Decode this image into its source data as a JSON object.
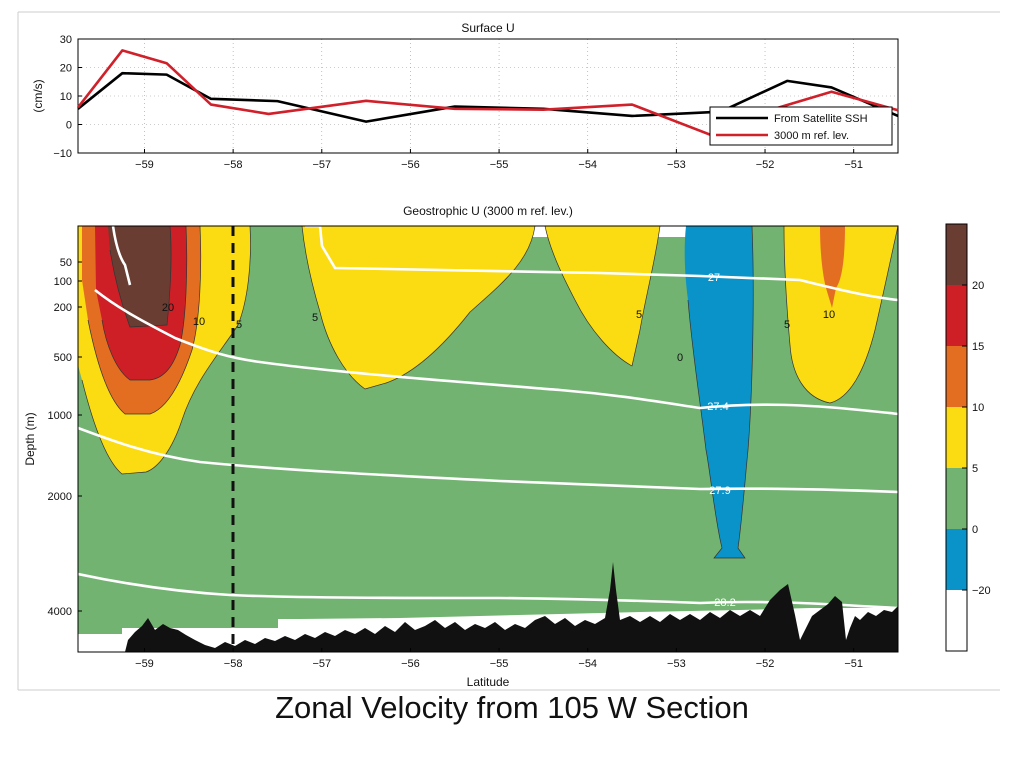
{
  "caption": "Zonal Velocity from 105 W Section",
  "colors": {
    "black_series": "#000000",
    "red_series": "#d0202a",
    "band_lt_neg20": "#ffffff",
    "band_neg20_0": "#0a93c8",
    "band_0_5": "#72b372",
    "band_5_10": "#fbdc12",
    "band_10_15": "#e36e22",
    "band_15_20": "#cd1f25",
    "band_gt_20": "#6a3d33",
    "isopycnal": "#ffffff",
    "bathymetry": "#111111"
  },
  "chart_data": [
    {
      "type": "line",
      "title": "Surface U",
      "xlabel": "",
      "ylabel": "(cm/s)",
      "xlim": [
        -59.75,
        -50.5
      ],
      "ylim": [
        -10,
        30
      ],
      "x_ticks": [
        -59,
        -58,
        -57,
        -56,
        -55,
        -54,
        -53,
        -52,
        -51
      ],
      "y_ticks": [
        -10,
        0,
        10,
        20,
        30
      ],
      "grid": true,
      "legend_position": "lower-right",
      "series": [
        {
          "name": "From Satellite SSH",
          "color": "#000000",
          "x": [
            -59.75,
            -59.25,
            -58.75,
            -58.25,
            -57.5,
            -56.5,
            -55.5,
            -54.5,
            -53.5,
            -52.5,
            -51.75,
            -51.25,
            -50.5
          ],
          "y": [
            5.5,
            18,
            17.5,
            9,
            8.2,
            1,
            6.3,
            5.5,
            3,
            4.5,
            15.3,
            13,
            3
          ]
        },
        {
          "name": "3000 m ref. lev.",
          "color": "#d0202a",
          "x": [
            -59.75,
            -59.25,
            -58.75,
            -58.25,
            -57.6,
            -56.5,
            -55.5,
            -54.5,
            -53.5,
            -52.5,
            -52.0,
            -51.25,
            -50.5
          ],
          "y": [
            6,
            26,
            21.5,
            7,
            3.7,
            8.3,
            5.5,
            5.2,
            7,
            -5,
            4.5,
            11.5,
            5
          ]
        }
      ]
    },
    {
      "type": "heatmap",
      "title": "Geostrophic U (3000 m ref. lev.)",
      "xlabel": "Latitude",
      "ylabel": "Depth (m)",
      "xlim": [
        -59.75,
        -50.5
      ],
      "x_ticks": [
        -59,
        -58,
        -57,
        -56,
        -55,
        -54,
        -53,
        -52,
        -51
      ],
      "y_ticks": [
        50,
        100,
        200,
        500,
        1000,
        2000,
        4000
      ],
      "colorbar_ticks": [
        20,
        15,
        10,
        5,
        0,
        -20
      ],
      "contour_labels": [
        {
          "text": "20",
          "lat": -59.2,
          "depth": 200
        },
        {
          "text": "10",
          "lat": -58.75,
          "depth": 250
        },
        {
          "text": "5",
          "lat": -57.95,
          "depth": 280
        },
        {
          "text": "5",
          "lat": -56.8,
          "depth": 260
        },
        {
          "text": "5",
          "lat": -53.5,
          "depth": 240
        },
        {
          "text": "0",
          "lat": -52.8,
          "depth": 480
        },
        {
          "text": "5",
          "lat": -51.75,
          "depth": 280
        },
        {
          "text": "10",
          "lat": -51.25,
          "depth": 220
        }
      ],
      "isopycnal_labels": [
        {
          "text": "27",
          "lat": -52.45,
          "depth": 100
        },
        {
          "text": "27.4",
          "lat": -52.2,
          "depth": 900
        },
        {
          "text": "27.9",
          "lat": -52.2,
          "depth": 1870
        },
        {
          "text": "28.2",
          "lat": -52.45,
          "depth": 3480
        }
      ],
      "reference_line_lat": -58
    }
  ]
}
